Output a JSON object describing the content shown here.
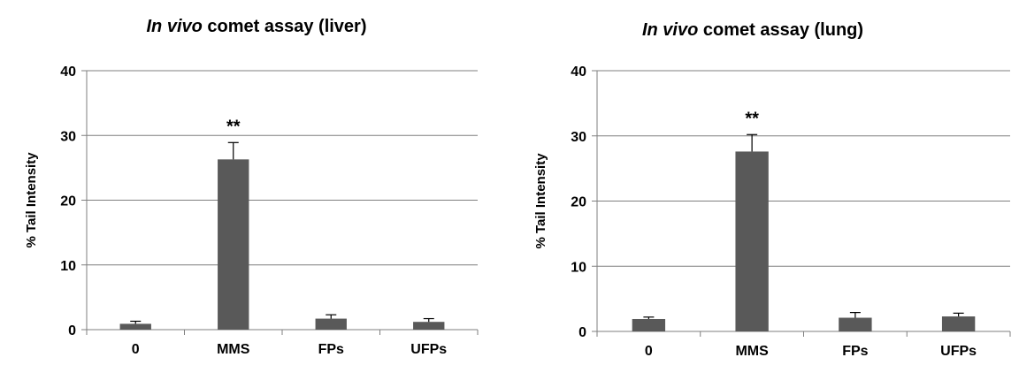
{
  "chart_data": [
    {
      "type": "bar",
      "title_italic": "In vivo",
      "title_rest": " comet assay (liver)",
      "ylabel": "% Tail Intensity",
      "xlabel": "",
      "categories": [
        "0",
        "MMS",
        "FPs",
        "UFPs"
      ],
      "values": [
        0.9,
        26.3,
        1.7,
        1.2
      ],
      "errors": [
        0.4,
        2.6,
        0.6,
        0.5
      ],
      "annotations": [
        "",
        "**",
        "",
        ""
      ],
      "ylim": [
        0,
        40
      ],
      "yticks": [
        0,
        10,
        20,
        30,
        40
      ],
      "grid": true,
      "bar_color": "#595959"
    },
    {
      "type": "bar",
      "title_italic": "In vivo",
      "title_rest": " comet assay (lung)",
      "ylabel": "% Tail Intensity",
      "xlabel": "",
      "categories": [
        "0",
        "MMS",
        "FPs",
        "UFPs"
      ],
      "values": [
        1.9,
        27.6,
        2.1,
        2.3
      ],
      "errors": [
        0.3,
        2.6,
        0.8,
        0.5
      ],
      "annotations": [
        "",
        "**",
        "",
        ""
      ],
      "ylim": [
        0,
        40
      ],
      "yticks": [
        0,
        10,
        20,
        30,
        40
      ],
      "grid": true,
      "bar_color": "#595959"
    }
  ]
}
